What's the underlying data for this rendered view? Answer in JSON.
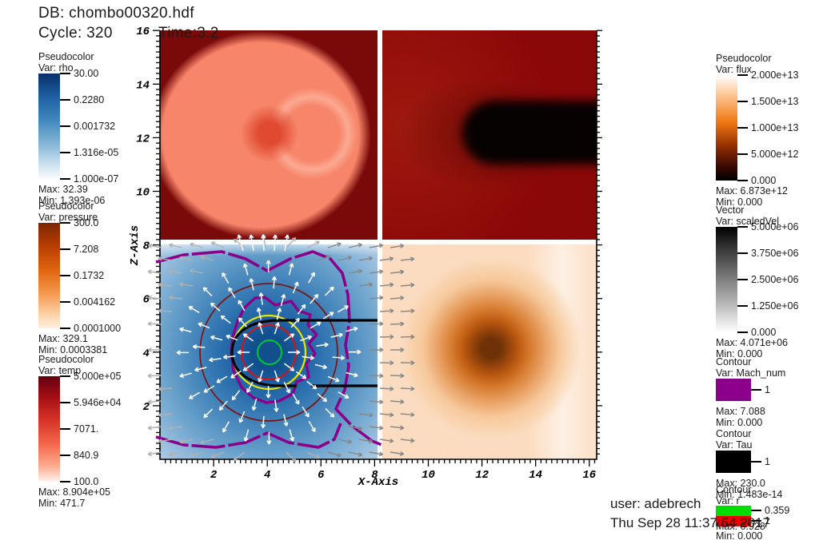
{
  "header": {
    "db": "DB: chombo00320.hdf",
    "cycle": "Cycle: 320",
    "time": "Time:3.2"
  },
  "footer": {
    "user": "user: adebrech",
    "date": "Thu Sep 28 11:37:54 2017"
  },
  "axes": {
    "x_label": "X-Axis",
    "z_label": "Z-Axis",
    "x_ticks": [
      "2",
      "4",
      "6",
      "8",
      "10",
      "12",
      "14",
      "16"
    ],
    "z_ticks": [
      "2",
      "4",
      "6",
      "8",
      "10",
      "12",
      "14",
      "16"
    ]
  },
  "legends": {
    "rho": {
      "title": "Pseudocolor",
      "var_label": "Var: rho",
      "labels": [
        "30.00",
        "0.2280",
        "0.001732",
        "1.316e-05",
        "1.000e-07"
      ],
      "max": "Max: 32.39",
      "min": "Min: 1.393e-06",
      "gradient": [
        "#083069 0%",
        "#1e5fa2 22%",
        "#4289bf 45%",
        "#8ab8d8 68%",
        "#d3e4f0 88%",
        "#fafcfe 100%"
      ]
    },
    "pressure": {
      "title": "Pseudocolor",
      "var_label": "Var: pressure",
      "labels": [
        "300.0",
        "7.208",
        "0.1732",
        "0.004162",
        "0.0001000"
      ],
      "max": "Max: 329.1",
      "min": "Min: 0.0003381",
      "gradient": [
        "#7c2604 0%",
        "#b83d02 22%",
        "#e06510 45%",
        "#f59b53 68%",
        "#fbd3a8 87%",
        "#fdf0e3 100%"
      ]
    },
    "temp": {
      "title": "Pseudocolor",
      "var_label": "Var: temp",
      "labels": [
        "5.000e+05",
        "5.946e+04",
        "7071.",
        "840.9",
        "100.0"
      ],
      "max": "Max: 8.904e+05",
      "min": "Min: 471.7",
      "gradient": [
        "#650010 0%",
        "#a50f15 20%",
        "#d83428 42%",
        "#f4684d 65%",
        "#fcaf93 86%",
        "#fff3ee 100%"
      ]
    },
    "flux": {
      "title": "Pseudocolor",
      "var_label": "Var: flux",
      "labels": [
        "2.000e+13",
        "1.500e+13",
        "1.000e+13",
        "5.000e+12",
        "0.000"
      ],
      "max": "Max: 6.873e+12",
      "min": "Min: 0.000",
      "gradient": [
        "#ffffff 0%",
        "#fdc38d 20%",
        "#ef7611 45%",
        "#8f2d03 68%",
        "#3d0a02 86%",
        "#000000 100%"
      ]
    },
    "scaledvel": {
      "title": "Vector",
      "var_label": "Var: scaledVel",
      "labels": [
        "5.000e+06",
        "3.750e+06",
        "2.500e+06",
        "1.250e+06",
        "0.000"
      ],
      "max": "Max: 4.071e+06",
      "min": "Min: 0.000",
      "gradient": [
        "#000000 0%",
        "#3a3a3a 22%",
        "#7a7a7a 48%",
        "#b5b5b5 72%",
        "#e6e6e6 90%",
        "#ffffff 100%"
      ]
    },
    "mach": {
      "title": "Contour",
      "var_label": "Var: Mach_num",
      "levels": [
        {
          "color": "#8b008b",
          "label": "1"
        }
      ],
      "max": "Max: 7.088",
      "min": "Min: 0.000"
    },
    "tau": {
      "title": "Contour",
      "var_label": "Var: Tau",
      "levels": [
        {
          "color": "#000000",
          "label": "1"
        }
      ],
      "max": "Max: 230.0",
      "min": "Min: 1.483e-14"
    },
    "r": {
      "title": "Contour",
      "var_label": "Var: r",
      "levels": [
        {
          "color": "#00dd00",
          "label": "0.359"
        },
        {
          "color": "#ee0000",
          "label": "1"
        }
      ],
      "max": "Max: 0.928",
      "min": "Min: 0.000"
    }
  },
  "plot_colors": {
    "mach_contour": "#8b008b",
    "tau_contour": "#000000",
    "r_green_contour": "#00c832",
    "r_red_contour": "#e01010",
    "yellow_contour": "#e6e600",
    "dark_red_contour": "#7b1616",
    "rho_core": "#114f8d",
    "temp_background": "#7a0a0a",
    "flux_background": "#8b0808",
    "pressure_core": "#6f3206"
  }
}
